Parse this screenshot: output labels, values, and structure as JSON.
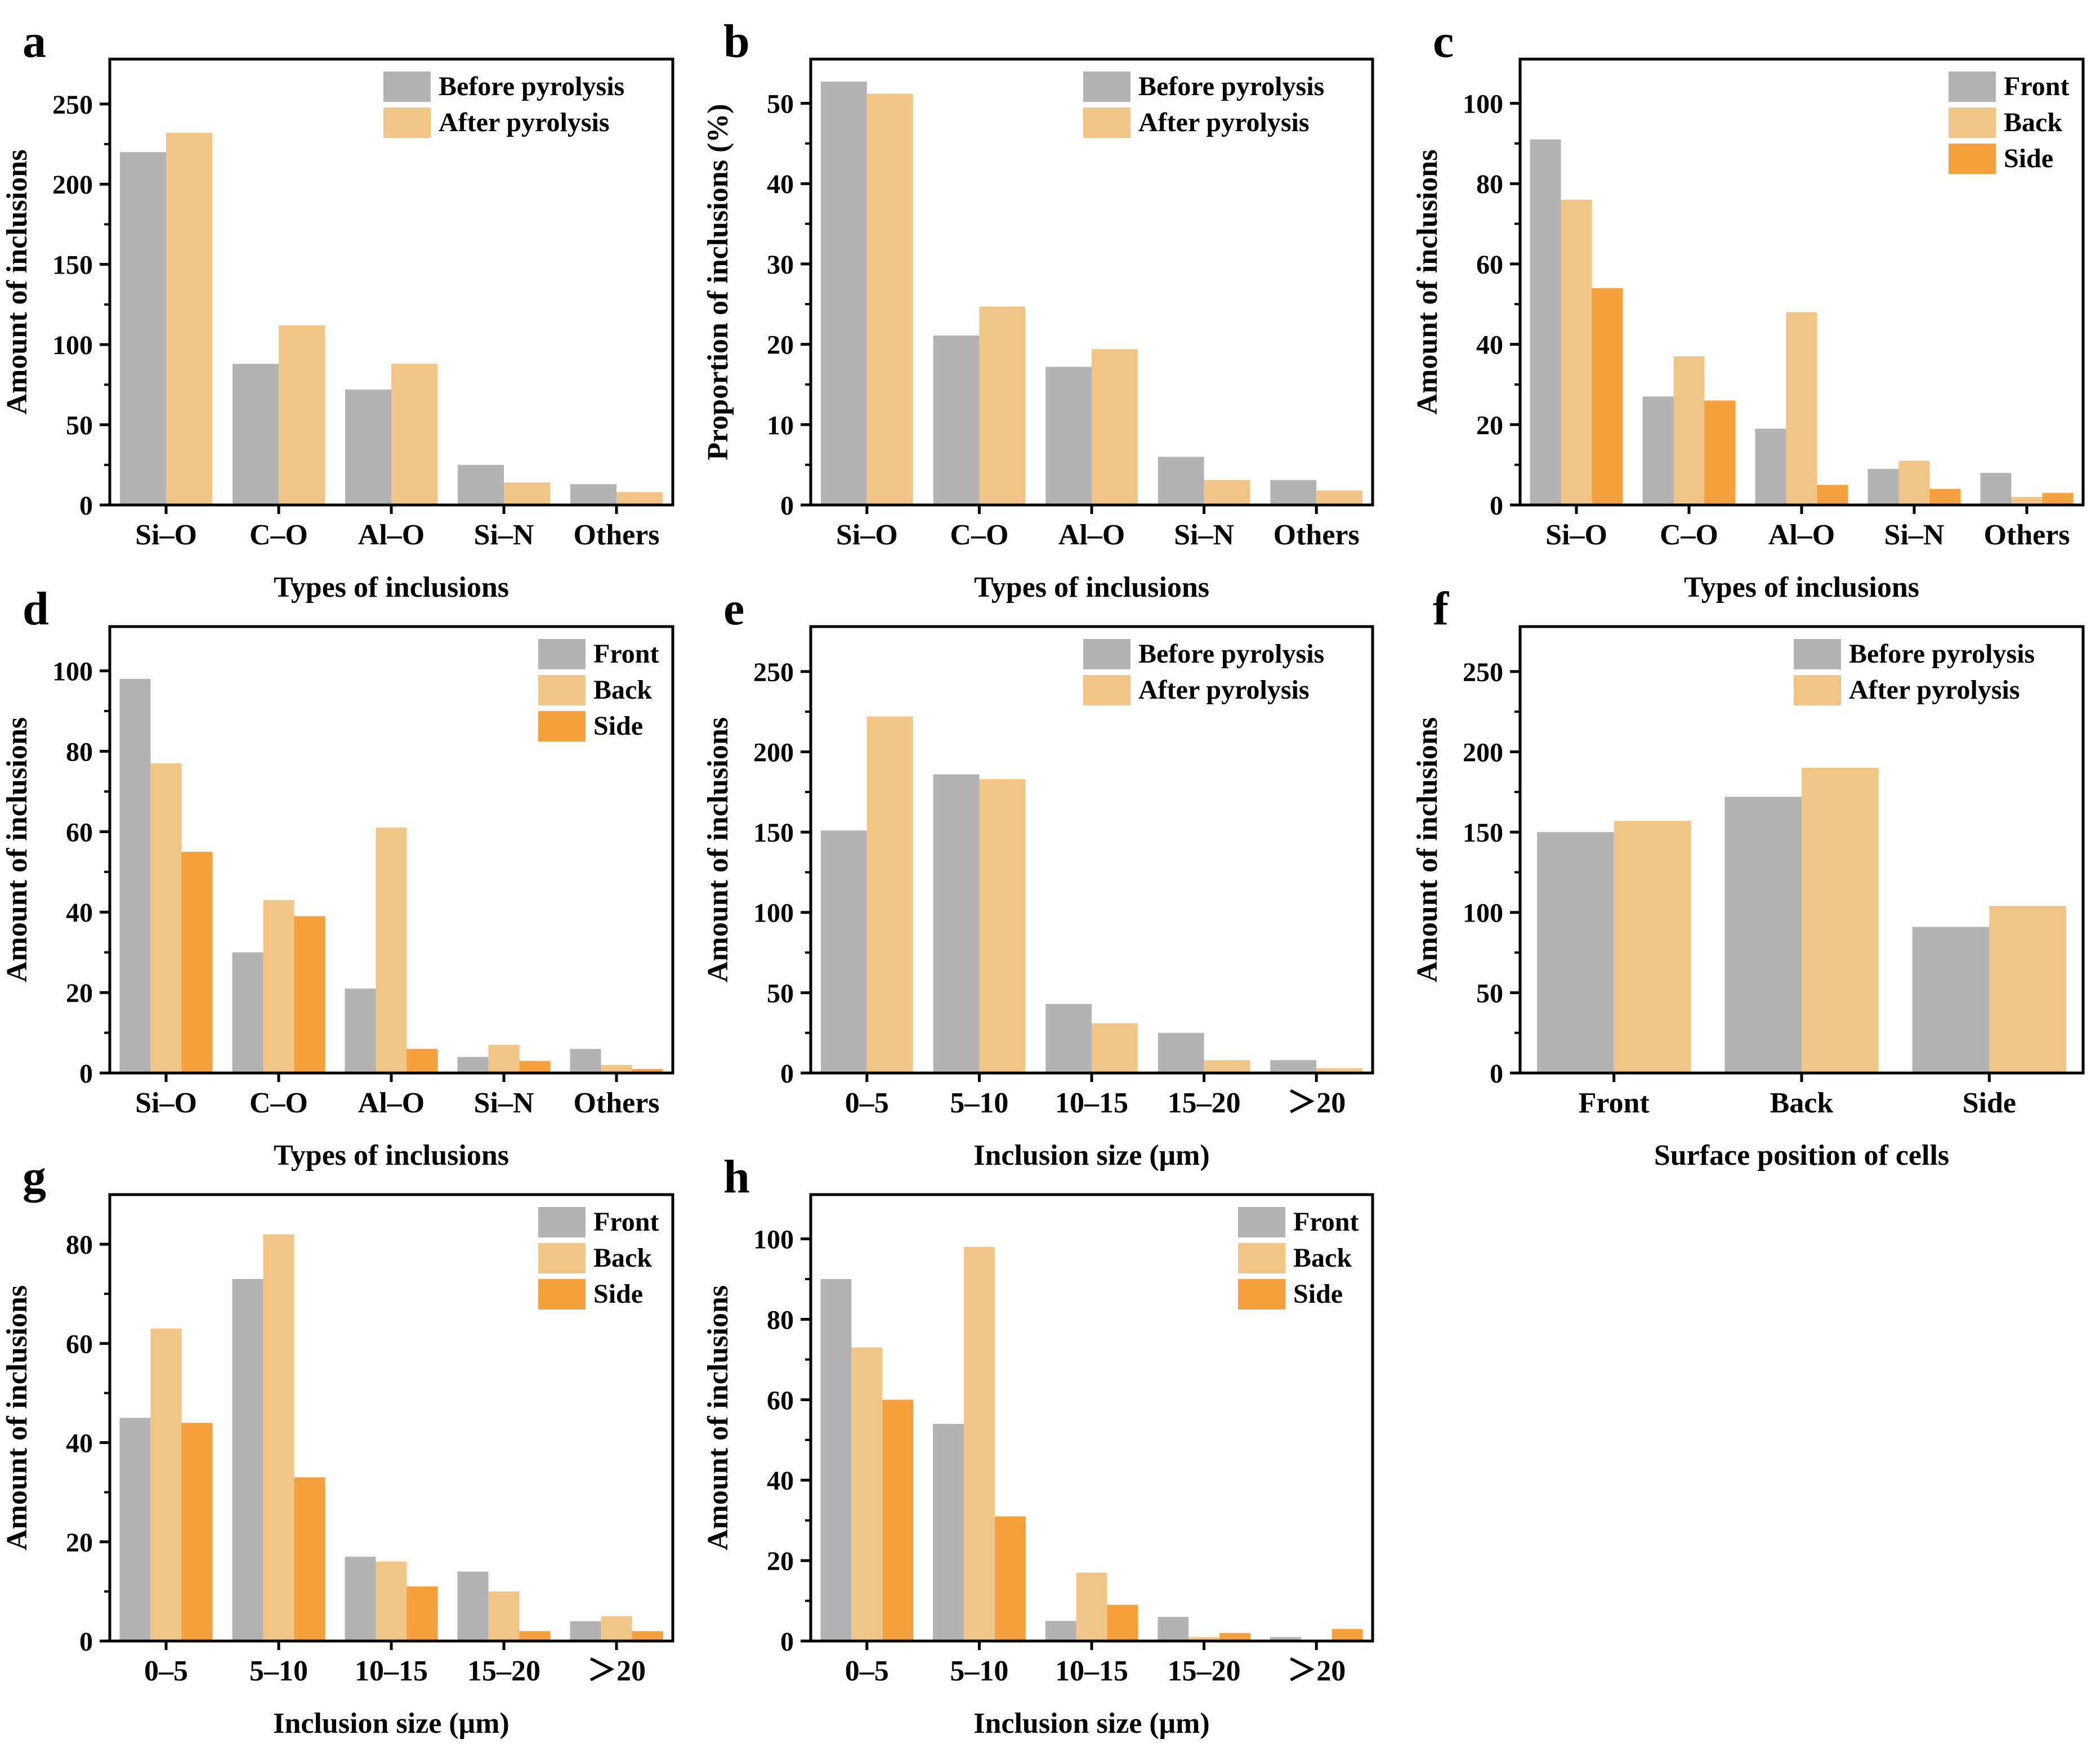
{
  "colors": {
    "gray": "#b3b3b3",
    "light_orange": "#f0c585",
    "orange": "#f5a03c",
    "axis": "#000000"
  },
  "chart_data": [
    {
      "panel": "a",
      "type": "bar",
      "xlabel": "Types of inclusions",
      "ylabel": "Amount of inclusions",
      "ylim": [
        0,
        278
      ],
      "yticks": [
        0,
        50,
        100,
        150,
        200,
        250
      ],
      "categories": [
        "Si–O",
        "C–O",
        "Al–O",
        "Si–N",
        "Others"
      ],
      "legend_position": "top-right",
      "series": [
        {
          "name": "Before pyrolysis",
          "color": "#b3b3b3",
          "values": [
            220,
            88,
            72,
            25,
            13
          ]
        },
        {
          "name": "After pyrolysis",
          "color": "#f0c585",
          "values": [
            232,
            112,
            88,
            14,
            8
          ]
        }
      ]
    },
    {
      "panel": "b",
      "type": "bar",
      "xlabel": "Types of inclusions",
      "ylabel": "Proportion of inclusions (%)",
      "ylim": [
        0,
        55.5
      ],
      "yticks": [
        0,
        10,
        20,
        30,
        40,
        50
      ],
      "categories": [
        "Si–O",
        "C–O",
        "Al–O",
        "Si–N",
        "Others"
      ],
      "legend_position": "top-right",
      "series": [
        {
          "name": "Before pyrolysis",
          "color": "#b3b3b3",
          "values": [
            52.7,
            21.1,
            17.2,
            6.0,
            3.1
          ]
        },
        {
          "name": "After pyrolysis",
          "color": "#f0c585",
          "values": [
            51.2,
            24.7,
            19.4,
            3.1,
            1.8
          ]
        }
      ]
    },
    {
      "panel": "c",
      "type": "bar",
      "xlabel": "Types of inclusions",
      "ylabel": "Amount of inclusions",
      "ylim": [
        0,
        111
      ],
      "yticks": [
        0,
        20,
        40,
        60,
        80,
        100
      ],
      "categories": [
        "Si–O",
        "C–O",
        "Al–O",
        "Si–N",
        "Others"
      ],
      "legend_position": "top-right",
      "series": [
        {
          "name": "Front",
          "color": "#b3b3b3",
          "values": [
            91,
            27,
            19,
            9,
            8
          ]
        },
        {
          "name": "Back",
          "color": "#f0c585",
          "values": [
            76,
            37,
            48,
            11,
            2
          ]
        },
        {
          "name": "Side",
          "color": "#f5a03c",
          "values": [
            54,
            26,
            5,
            4,
            3
          ]
        }
      ]
    },
    {
      "panel": "d",
      "type": "bar",
      "xlabel": "Types of inclusions",
      "ylabel": "Amount of inclusions",
      "ylim": [
        0,
        111
      ],
      "yticks": [
        0,
        20,
        40,
        60,
        80,
        100
      ],
      "categories": [
        "Si–O",
        "C–O",
        "Al–O",
        "Si–N",
        "Others"
      ],
      "legend_position": "top-right",
      "series": [
        {
          "name": "Front",
          "color": "#b3b3b3",
          "values": [
            98,
            30,
            21,
            4,
            6
          ]
        },
        {
          "name": "Back",
          "color": "#f0c585",
          "values": [
            77,
            43,
            61,
            7,
            2
          ]
        },
        {
          "name": "Side",
          "color": "#f5a03c",
          "values": [
            55,
            39,
            6,
            3,
            1
          ]
        }
      ]
    },
    {
      "panel": "e",
      "type": "bar",
      "xlabel": "Inclusion size (μm)",
      "ylabel": "Amount of inclusions",
      "ylim": [
        0,
        278
      ],
      "yticks": [
        0,
        50,
        100,
        150,
        200,
        250
      ],
      "categories": [
        "0–5",
        "5–10",
        "10–15",
        "15–20",
        "＞20"
      ],
      "legend_position": "top-right",
      "series": [
        {
          "name": "Before pyrolysis",
          "color": "#b3b3b3",
          "values": [
            151,
            186,
            43,
            25,
            8
          ]
        },
        {
          "name": "After pyrolysis",
          "color": "#f0c585",
          "values": [
            222,
            183,
            31,
            8,
            3
          ]
        }
      ]
    },
    {
      "panel": "f",
      "type": "bar",
      "xlabel": "Surface position of cells",
      "ylabel": "Amount of inclusions",
      "ylim": [
        0,
        278
      ],
      "yticks": [
        0,
        50,
        100,
        150,
        200,
        250
      ],
      "categories": [
        "Front",
        "Back",
        "Side"
      ],
      "legend_position": "top-right",
      "series": [
        {
          "name": "Before pyrolysis",
          "color": "#b3b3b3",
          "values": [
            150,
            172,
            91
          ]
        },
        {
          "name": "After pyrolysis",
          "color": "#f0c585",
          "values": [
            157,
            190,
            104
          ]
        }
      ]
    },
    {
      "panel": "g",
      "type": "bar",
      "xlabel": "Inclusion size (μm)",
      "ylabel": "Amount of inclusions",
      "ylim": [
        0,
        90
      ],
      "yticks": [
        0,
        20,
        40,
        60,
        80
      ],
      "categories": [
        "0–5",
        "5–10",
        "10–15",
        "15–20",
        "＞20"
      ],
      "legend_position": "top-right",
      "series": [
        {
          "name": "Front",
          "color": "#b3b3b3",
          "values": [
            45,
            73,
            17,
            14,
            4
          ]
        },
        {
          "name": "Back",
          "color": "#f0c585",
          "values": [
            63,
            82,
            16,
            10,
            5
          ]
        },
        {
          "name": "Side",
          "color": "#f5a03c",
          "values": [
            44,
            33,
            11,
            2,
            2
          ]
        }
      ]
    },
    {
      "panel": "h",
      "type": "bar",
      "xlabel": "Inclusion size (μm)",
      "ylabel": "Amount of inclusions",
      "ylim": [
        0,
        111
      ],
      "yticks": [
        0,
        20,
        40,
        60,
        80,
        100
      ],
      "categories": [
        "0–5",
        "5–10",
        "10–15",
        "15–20",
        "＞20"
      ],
      "legend_position": "top-right",
      "series": [
        {
          "name": "Front",
          "color": "#b3b3b3",
          "values": [
            90,
            54,
            5,
            6,
            1
          ]
        },
        {
          "name": "Back",
          "color": "#f0c585",
          "values": [
            73,
            98,
            17,
            1,
            0
          ]
        },
        {
          "name": "Side",
          "color": "#f5a03c",
          "values": [
            60,
            31,
            9,
            2,
            3
          ]
        }
      ]
    }
  ]
}
